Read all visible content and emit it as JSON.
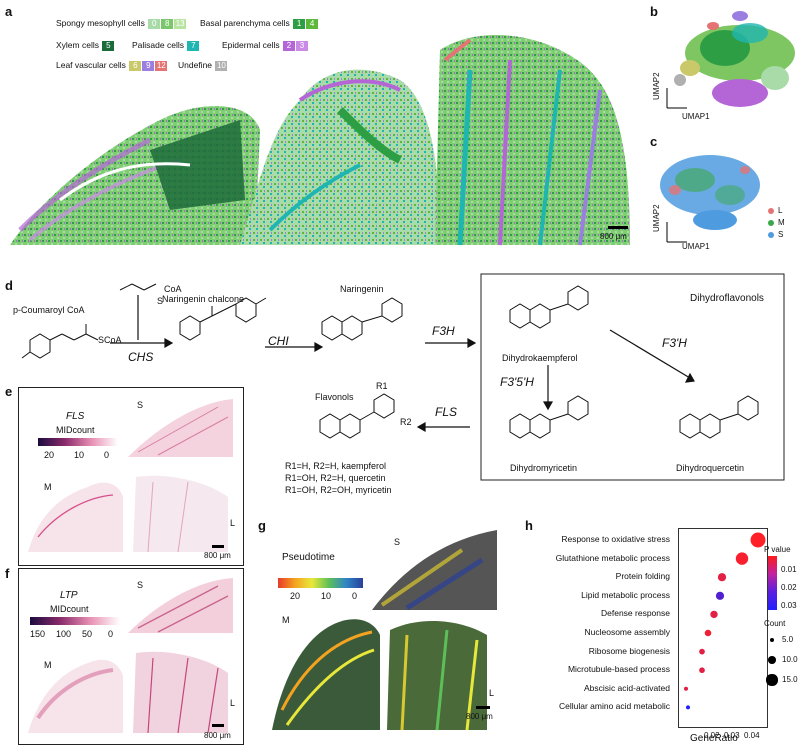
{
  "panel_a": {
    "label": "a",
    "legend": [
      {
        "name": "Spongy mesophyll cells",
        "chips": [
          {
            "t": "0",
            "c": "#a8dba8"
          },
          {
            "t": "8",
            "c": "#7bc86c"
          },
          {
            "t": "13",
            "c": "#b9e3a1"
          }
        ]
      },
      {
        "name": "Basal parenchyma cells",
        "chips": [
          {
            "t": "1",
            "c": "#2e9e44"
          },
          {
            "t": "4",
            "c": "#5cb83a"
          }
        ]
      },
      {
        "name": "Xylem cells",
        "chips": [
          {
            "t": "5",
            "c": "#1b6b3a"
          }
        ]
      },
      {
        "name": "Palisade cells",
        "chips": [
          {
            "t": "7",
            "c": "#1fb5b0"
          }
        ]
      },
      {
        "name": "Epidermal cells",
        "chips": [
          {
            "t": "2",
            "c": "#b466d6"
          },
          {
            "t": "3",
            "c": "#c98be6"
          }
        ]
      },
      {
        "name": "Leaf vascular cells",
        "chips": [
          {
            "t": "6",
            "c": "#c9c96a"
          },
          {
            "t": "9",
            "c": "#9b7fe0"
          },
          {
            "t": "12",
            "c": "#e57373"
          }
        ]
      },
      {
        "name": "Undefine",
        "chips": [
          {
            "t": "10",
            "c": "#b0b0b0"
          }
        ]
      }
    ],
    "scale": "800 μm"
  },
  "panel_b": {
    "label": "b",
    "xlabel": "UMAP1",
    "ylabel": "UMAP2"
  },
  "panel_c": {
    "label": "c",
    "xlabel": "UMAP1",
    "ylabel": "UMAP2",
    "legend": [
      {
        "t": "L",
        "c": "#e57373"
      },
      {
        "t": "M",
        "c": "#3aa84a"
      },
      {
        "t": "S",
        "c": "#4f9be0"
      }
    ]
  },
  "panel_d": {
    "label": "d",
    "compounds": {
      "coumaroyl": "p-Coumaroyl CoA",
      "scoa": "SCoA",
      "coa": "CoA",
      "s": "S",
      "naringenin_chalcone": "Naringenin chalcone",
      "naringenin": "Naringenin",
      "dihydroflavonols": "Dihydroflavonols",
      "dhk": "Dihydrokaempferol",
      "dhm": "Dihydromyricetin",
      "dhq": "Dihydroquercetin",
      "flavonols": "Flavonols",
      "r1": "R1",
      "r2": "R2",
      "r_lines": [
        "R1=H, R2=H, kaempferol",
        "R1=OH, R2=H, quercetin",
        "R1=OH, R2=OH, myricetin"
      ]
    },
    "enzymes": {
      "chs": "CHS",
      "chi": "CHI",
      "f3h": "F3H",
      "f3ph": "F3'H",
      "f35h": "F3'5'H",
      "fls": "FLS"
    }
  },
  "panel_e": {
    "label": "e",
    "gene": "FLS",
    "cbar_title": "MIDcount",
    "ticks": [
      "20",
      "10",
      "0"
    ],
    "labels": [
      "S",
      "M",
      "L"
    ],
    "scale": "800 μm"
  },
  "panel_f": {
    "label": "f",
    "gene": "LTP",
    "cbar_title": "MIDcount",
    "ticks": [
      "150",
      "100",
      "50",
      "0"
    ],
    "labels": [
      "S",
      "M",
      "L"
    ],
    "scale": "800 μm"
  },
  "panel_g": {
    "label": "g",
    "cbar_title": "Pseudotime",
    "ticks": [
      "20",
      "10",
      "0"
    ],
    "labels": [
      "S",
      "M",
      "L"
    ],
    "scale": "800 μm"
  },
  "chart_data": {
    "type": "scatter",
    "title": "",
    "xlabel": "GeneRatio",
    "ylabel": "",
    "xticks": [
      "0.02",
      "0.03",
      "0.04"
    ],
    "categories": [
      "Response to oxidative stress",
      "Glutathione metabolic process",
      "Protein folding",
      "Lipid metabolic process",
      "Defense response",
      "Nucleosome assembly",
      "Ribosome biogenesis",
      "Microtubule-based process",
      "Abscisic acid-activated",
      "Cellular amino acid metabolic"
    ],
    "x": [
      0.042,
      0.034,
      0.024,
      0.023,
      0.02,
      0.017,
      0.014,
      0.014,
      0.006,
      0.007
    ],
    "count": [
      16,
      13,
      8,
      8,
      7,
      6,
      5,
      5,
      3,
      3
    ],
    "pvalue": [
      0.002,
      0.003,
      0.006,
      0.027,
      0.006,
      0.004,
      0.006,
      0.006,
      0.006,
      0.034
    ],
    "xlim": [
      0.004,
      0.045
    ],
    "pvalue_legend": {
      "title": "P value",
      "ticks": [
        "0.01",
        "0.02",
        "0.03"
      ]
    },
    "count_legend": {
      "title": "Count",
      "ticks": [
        "5.0",
        "10.0",
        "15.0"
      ]
    },
    "panel_label": "h"
  }
}
